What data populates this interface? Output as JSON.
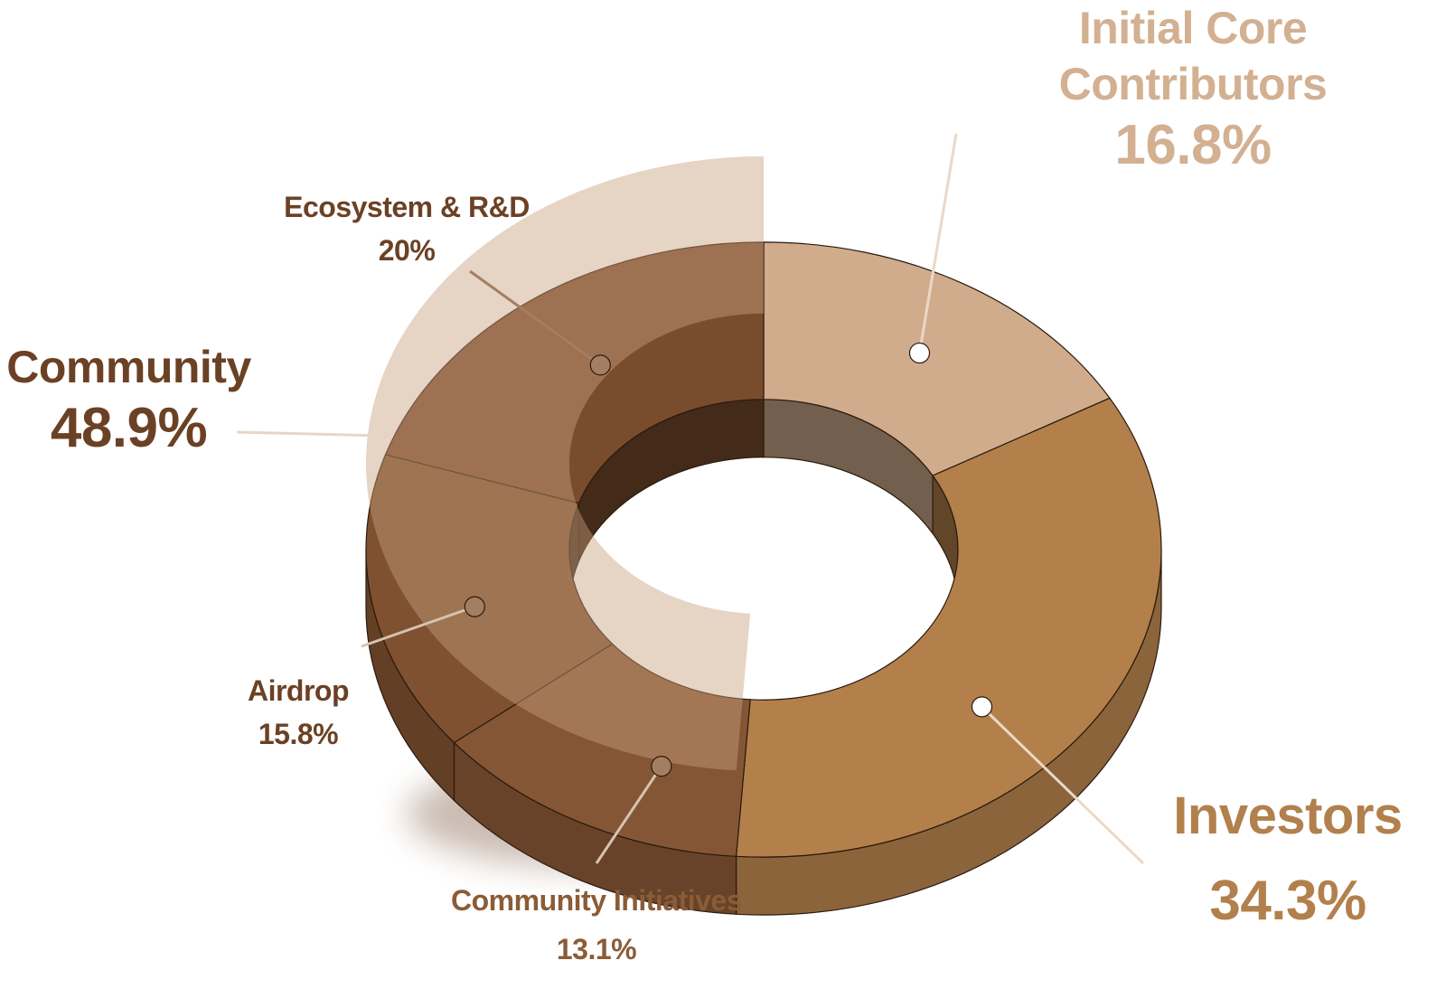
{
  "chart_data": {
    "type": "pie",
    "style": "3d-donut",
    "groups": [
      {
        "label": "Community",
        "value_label": "48.9%",
        "value": 48.9,
        "color": "#7a4c2e"
      },
      {
        "label": "Initial Core Contributors",
        "value_label": "16.8%",
        "value": 16.8,
        "color": "#d0ac8c"
      },
      {
        "label": "Investors",
        "value_label": "34.3%",
        "value": 34.3,
        "color": "#b3804b"
      }
    ],
    "slices": [
      {
        "label": "Ecosystem & R&D",
        "value_label": "20%",
        "value": 20,
        "color": "#7a4c2e"
      },
      {
        "label": "Airdrop",
        "value_label": "15.8%",
        "value": 15.8,
        "color": "#7f5131"
      },
      {
        "label": "Community Initiatives",
        "value_label": "13.1%",
        "value": 13.1,
        "color": "#855635"
      },
      {
        "label": "Initial Core Contributors",
        "value_label": "16.8%",
        "value": 16.8,
        "color": "#d0ac8c"
      },
      {
        "label": "Investors",
        "value_label": "34.3%",
        "value": 34.3,
        "color": "#b3804b"
      }
    ]
  },
  "labels": {
    "community": {
      "name": "Community",
      "pct": "48.9%",
      "color": "#6b4125"
    },
    "ecosystem": {
      "name": "Ecosystem & R&D",
      "pct": "20%",
      "color": "#6b4125"
    },
    "airdrop": {
      "name": "Airdrop",
      "pct": "15.8%",
      "color": "#6b4125"
    },
    "initiatives": {
      "name": "Community Initiatives",
      "pct": "13.1%",
      "color": "#8a5c37"
    },
    "core": {
      "name_line1": "Initial Core",
      "name_line2": "Contributors",
      "pct": "16.8%",
      "color": "#d3b092"
    },
    "investors": {
      "name": "Investors",
      "pct": "34.3%",
      "color": "#b2804c"
    }
  }
}
